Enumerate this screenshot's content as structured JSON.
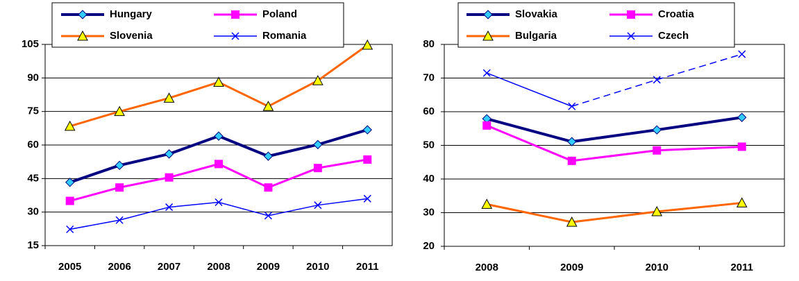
{
  "chart_data": [
    {
      "type": "line",
      "categories": [
        "2005",
        "2006",
        "2007",
        "2008",
        "2009",
        "2010",
        "2011"
      ],
      "ylim": [
        15,
        105
      ],
      "yticks": [
        15,
        30,
        45,
        60,
        75,
        90,
        105
      ],
      "grid": true,
      "series": [
        {
          "name": "Hungary",
          "color": "#000080",
          "marker": "diamond",
          "marker_color": "#33ccff",
          "line_width": 4,
          "values": [
            43.3,
            50.9,
            56,
            64,
            55,
            60.2,
            66.8
          ]
        },
        {
          "name": "Poland",
          "color": "#ff00ff",
          "marker": "square",
          "marker_color": "#ff00ff",
          "line_width": 3,
          "values": [
            35,
            41,
            45.5,
            51.5,
            41,
            49.7,
            53.5
          ]
        },
        {
          "name": "Slovenia",
          "color": "#ff6600",
          "marker": "triangle",
          "marker_color": "#ffff00",
          "line_width": 3,
          "values": [
            68.4,
            75,
            81,
            88.1,
            77.3,
            88.8,
            104.7
          ]
        },
        {
          "name": "Romania",
          "color": "#0000ff",
          "marker": "x",
          "marker_color": "#0000ff",
          "line_width": 1.5,
          "values": [
            22.3,
            26.4,
            32.2,
            34.4,
            28.4,
            33.1,
            36
          ]
        }
      ]
    },
    {
      "type": "line",
      "categories": [
        "2008",
        "2009",
        "2010",
        "2011"
      ],
      "ylim": [
        20,
        80
      ],
      "yticks": [
        20,
        30,
        40,
        50,
        60,
        70,
        80
      ],
      "grid": true,
      "series": [
        {
          "name": "Slovakia",
          "color": "#000080",
          "marker": "diamond",
          "marker_color": "#33ccff",
          "line_width": 4,
          "values": [
            57.9,
            51.1,
            54.6,
            58.3
          ]
        },
        {
          "name": "Croatia",
          "color": "#ff00ff",
          "marker": "square",
          "marker_color": "#ff00ff",
          "line_width": 3,
          "values": [
            55.9,
            45.4,
            48.5,
            49.6
          ]
        },
        {
          "name": "Bulgaria",
          "color": "#ff6600",
          "marker": "triangle",
          "marker_color": "#ffff00",
          "line_width": 3,
          "values": [
            32.5,
            27.2,
            30.3,
            32.9
          ]
        },
        {
          "name": "Czech",
          "color": "#0000ff",
          "marker": "x",
          "marker_color": "#0000ff",
          "line_width": 1.5,
          "dashed_from_index": 1,
          "values": [
            71.5,
            61.6,
            69.5,
            77.1
          ]
        }
      ]
    }
  ]
}
